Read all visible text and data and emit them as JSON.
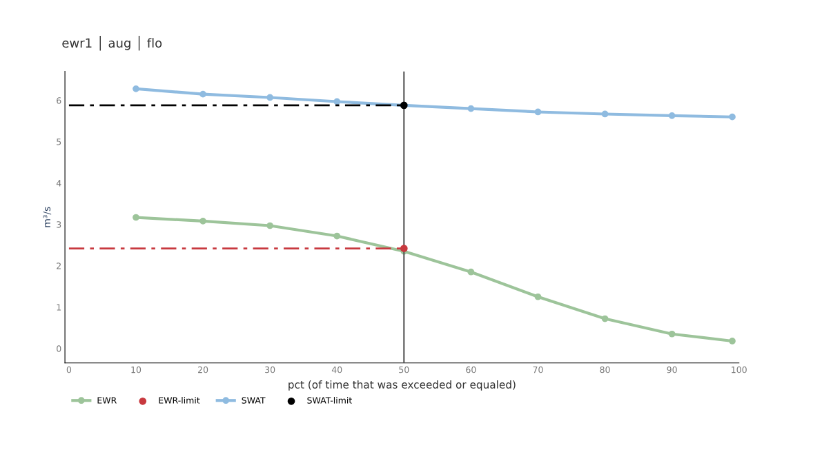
{
  "chart_data": {
    "type": "line",
    "title": "ewr1 │ aug │ flo",
    "xlabel": "pct (of time that was exceeded or equaled)",
    "ylabel": "m³/s",
    "series": [
      {
        "name": "EWR",
        "color": "#9dc49a",
        "x": [
          10,
          20,
          30,
          40,
          50,
          60,
          70,
          80,
          90,
          99
        ],
        "values": [
          3.17,
          3.08,
          2.97,
          2.72,
          2.35,
          1.85,
          1.25,
          0.72,
          0.35,
          0.18
        ],
        "marker": "circle"
      },
      {
        "name": "EWR-limit",
        "type": "scatter",
        "color": "#c8393f",
        "x": [
          50
        ],
        "values": [
          2.42
        ]
      },
      {
        "color": "#c8393f",
        "x": [
          0,
          50
        ],
        "values": [
          2.42,
          2.42
        ],
        "line_style": "dashed",
        "marker": "none"
      },
      {
        "name": "SWAT",
        "color": "#8fbbe0",
        "x": [
          10,
          20,
          30,
          40,
          50,
          60,
          70,
          80,
          90,
          99
        ],
        "values": [
          6.28,
          6.15,
          6.07,
          5.97,
          5.88,
          5.8,
          5.72,
          5.67,
          5.63,
          5.6
        ],
        "marker": "circle"
      },
      {
        "name": "SWAT-limit",
        "type": "scatter",
        "color": "#000000",
        "x": [
          50
        ],
        "values": [
          5.88
        ]
      },
      {
        "color": "#000000",
        "x": [
          0,
          50
        ],
        "values": [
          5.88,
          5.88
        ],
        "line_style": "dashed",
        "marker": "none"
      }
    ],
    "ref_lines": [
      {
        "axis": "x",
        "value": 50,
        "color": "#555555"
      }
    ],
    "xlim": [
      -0.6,
      100
    ],
    "xticks": [
      0,
      10,
      20,
      30,
      40,
      50,
      60,
      70,
      80,
      90,
      100
    ],
    "ylim": [
      -0.35,
      6.7
    ],
    "yticks": [
      0,
      1,
      2,
      3,
      4,
      5,
      6
    ],
    "grid": false,
    "legend": "bottom left"
  }
}
